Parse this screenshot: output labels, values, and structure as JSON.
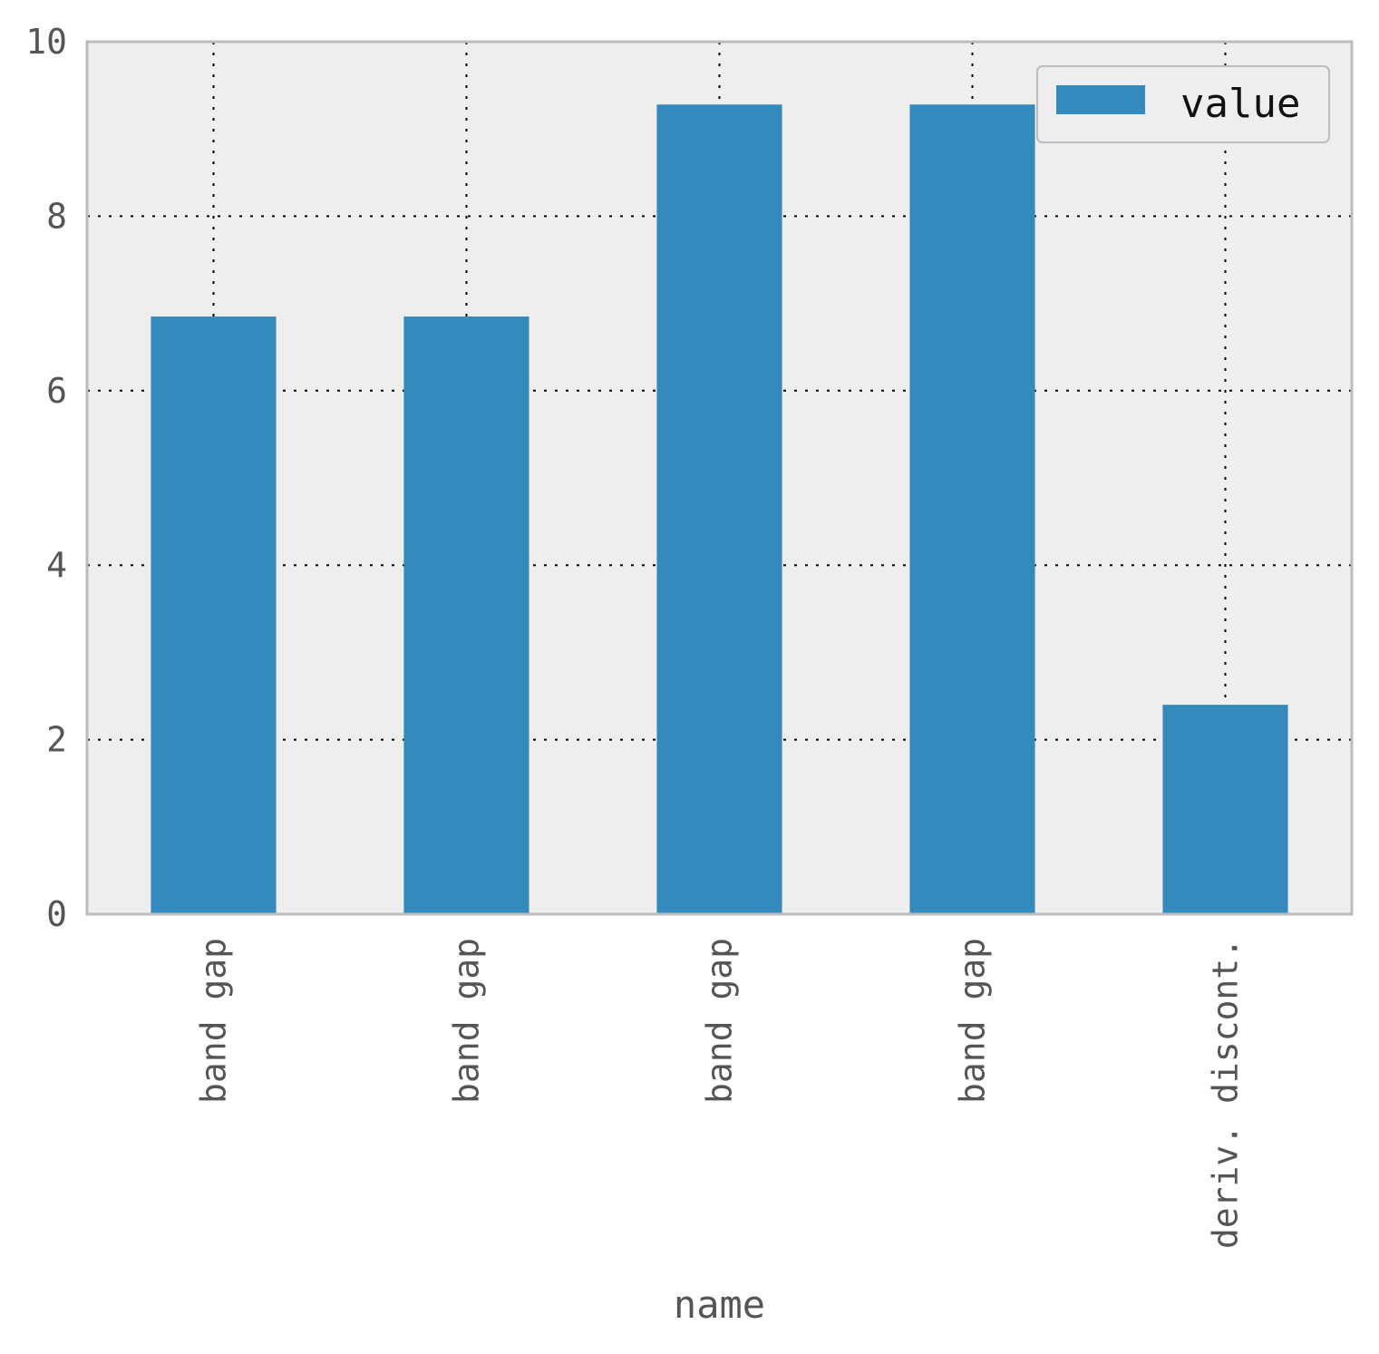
{
  "chart_data": {
    "type": "bar",
    "categories": [
      "band gap",
      "band gap",
      "band gap",
      "band gap",
      "deriv. discont."
    ],
    "series": [
      {
        "name": "value",
        "values": [
          6.85,
          6.85,
          9.28,
          9.28,
          2.4
        ],
        "color": "#348ABD"
      }
    ],
    "xlabel": "name",
    "ylabel": "",
    "ylim": [
      0,
      10
    ],
    "yticks": [
      "0",
      "2",
      "4",
      "6",
      "8",
      "10"
    ],
    "grid": true,
    "legend": "top-right",
    "background_color": "#EEEEEE",
    "frame_color": "#BCBCBC"
  }
}
